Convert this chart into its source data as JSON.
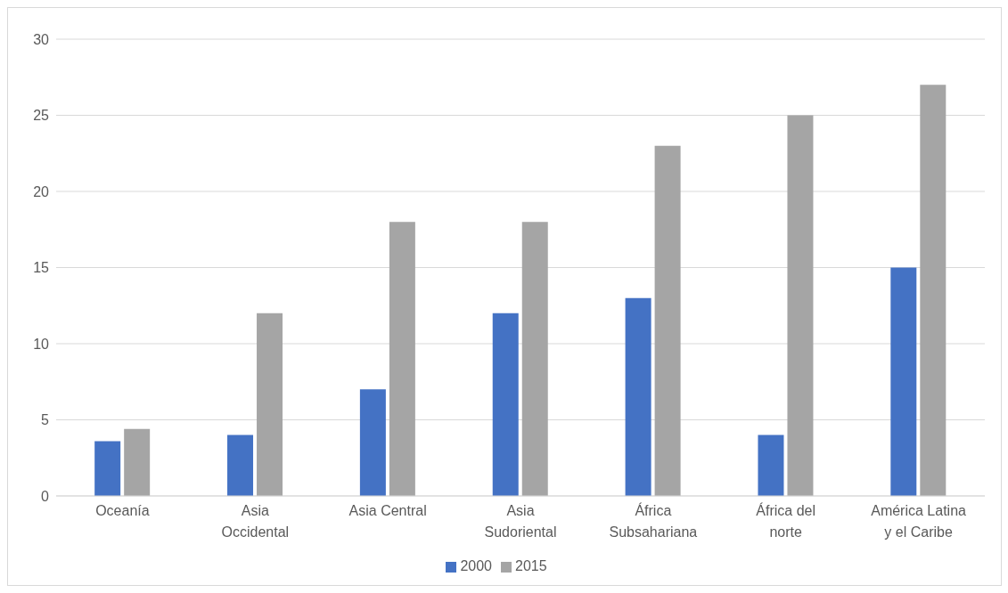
{
  "chart_data": {
    "type": "bar",
    "categories": [
      "Oceanía",
      "Asia Occidental",
      "Asia Central",
      "Asia Sudoriental",
      "África Subsahariana",
      "África del norte",
      "América Latina y el Caribe"
    ],
    "series": [
      {
        "name": "2000",
        "color": "#4472c4",
        "values": [
          3.6,
          4,
          7,
          12,
          13,
          4,
          15
        ]
      },
      {
        "name": "2015",
        "color": "#a5a5a5",
        "values": [
          4.4,
          12,
          18,
          18,
          23,
          25,
          27
        ]
      }
    ],
    "ylim": [
      0,
      30
    ],
    "yticks": [
      0,
      5,
      10,
      15,
      20,
      25,
      30
    ],
    "grid": "y",
    "legend": "bottom"
  }
}
